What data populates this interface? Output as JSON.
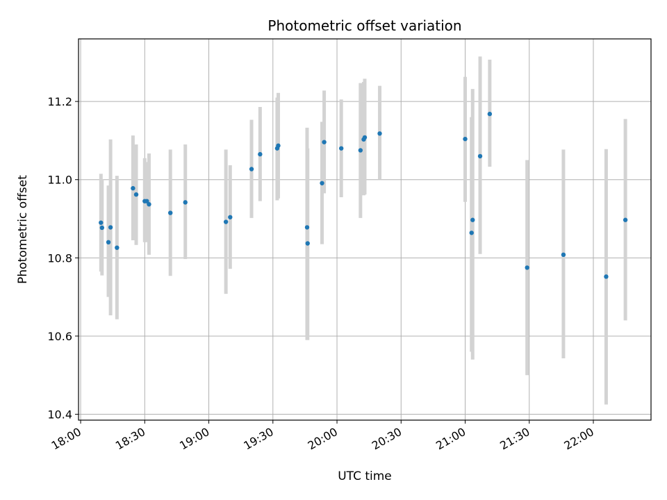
{
  "chart_data": {
    "type": "scatter",
    "title": "Photometric offset variation",
    "xlabel": "UTC time",
    "ylabel": "Photometric offset",
    "x_tick_labels": [
      "18:00",
      "18:30",
      "19:00",
      "19:30",
      "20:00",
      "20:30",
      "21:00",
      "21:30",
      "22:00"
    ],
    "y_tick_labels": [
      "10.4",
      "10.6",
      "10.8",
      "11.0",
      "11.2"
    ],
    "y_ticks": [
      10.4,
      10.6,
      10.8,
      11.0,
      11.2
    ],
    "xlim": [
      "17:59:00",
      "22:27:00"
    ],
    "ylim": [
      10.385,
      11.36
    ],
    "grid": true,
    "colors": {
      "points": "#1f77b4",
      "errorbars": "#d3d3d3",
      "grid": "#b0b0b0"
    },
    "points": [
      {
        "x": "18:09:30",
        "y": 10.89,
        "err_low": 10.765,
        "err_high": 11.015
      },
      {
        "x": "18:10:00",
        "y": 10.877,
        "err_low": 10.755,
        "err_high": 11.0
      },
      {
        "x": "18:13:00",
        "y": 10.84,
        "err_low": 10.7,
        "err_high": 10.985
      },
      {
        "x": "18:14:00",
        "y": 10.878,
        "err_low": 10.653,
        "err_high": 11.103
      },
      {
        "x": "18:17:00",
        "y": 10.826,
        "err_low": 10.643,
        "err_high": 11.01
      },
      {
        "x": "18:24:30",
        "y": 10.978,
        "err_low": 10.845,
        "err_high": 11.113
      },
      {
        "x": "18:26:00",
        "y": 10.962,
        "err_low": 10.833,
        "err_high": 11.09
      },
      {
        "x": "18:30:00",
        "y": 10.945,
        "err_low": 10.84,
        "err_high": 11.055
      },
      {
        "x": "18:31:00",
        "y": 10.945,
        "err_low": 10.84,
        "err_high": 11.045
      },
      {
        "x": "18:32:00",
        "y": 10.937,
        "err_low": 10.808,
        "err_high": 11.067
      },
      {
        "x": "18:42:00",
        "y": 10.915,
        "err_low": 10.754,
        "err_high": 11.077
      },
      {
        "x": "18:49:00",
        "y": 10.942,
        "err_low": 10.797,
        "err_high": 11.09
      },
      {
        "x": "19:08:00",
        "y": 10.892,
        "err_low": 10.708,
        "err_high": 11.077
      },
      {
        "x": "19:10:00",
        "y": 10.904,
        "err_low": 10.772,
        "err_high": 11.037
      },
      {
        "x": "19:20:00",
        "y": 11.027,
        "err_low": 10.902,
        "err_high": 11.153
      },
      {
        "x": "19:24:00",
        "y": 11.065,
        "err_low": 10.945,
        "err_high": 11.186
      },
      {
        "x": "19:32:00",
        "y": 11.08,
        "err_low": 10.947,
        "err_high": 11.21
      },
      {
        "x": "19:32:30",
        "y": 11.087,
        "err_low": 10.952,
        "err_high": 11.222
      },
      {
        "x": "19:46:00",
        "y": 10.878,
        "err_low": 10.59,
        "err_high": 11.133
      },
      {
        "x": "19:46:15",
        "y": 10.837,
        "err_low": 10.59,
        "err_high": 11.08
      },
      {
        "x": "19:53:00",
        "y": 10.991,
        "err_low": 10.835,
        "err_high": 11.148
      },
      {
        "x": "19:54:00",
        "y": 11.096,
        "err_low": 10.965,
        "err_high": 11.228
      },
      {
        "x": "20:02:00",
        "y": 11.08,
        "err_low": 10.955,
        "err_high": 11.205
      },
      {
        "x": "20:11:00",
        "y": 11.075,
        "err_low": 10.902,
        "err_high": 11.247
      },
      {
        "x": "20:12:30",
        "y": 11.103,
        "err_low": 10.96,
        "err_high": 11.25
      },
      {
        "x": "20:13:00",
        "y": 11.108,
        "err_low": 10.962,
        "err_high": 11.258
      },
      {
        "x": "20:20:00",
        "y": 11.118,
        "err_low": 11.0,
        "err_high": 11.24
      },
      {
        "x": "21:00:00",
        "y": 11.104,
        "err_low": 10.943,
        "err_high": 11.263
      },
      {
        "x": "21:03:00",
        "y": 10.864,
        "err_low": 10.56,
        "err_high": 11.16
      },
      {
        "x": "21:03:30",
        "y": 10.897,
        "err_low": 10.54,
        "err_high": 11.232
      },
      {
        "x": "21:07:00",
        "y": 11.06,
        "err_low": 10.81,
        "err_high": 11.315
      },
      {
        "x": "21:11:30",
        "y": 11.168,
        "err_low": 11.033,
        "err_high": 11.307
      },
      {
        "x": "21:29:00",
        "y": 10.775,
        "err_low": 10.5,
        "err_high": 11.05
      },
      {
        "x": "21:46:00",
        "y": 10.808,
        "err_low": 10.543,
        "err_high": 11.077
      },
      {
        "x": "22:06:00",
        "y": 10.752,
        "err_low": 10.425,
        "err_high": 11.078
      },
      {
        "x": "22:15:00",
        "y": 10.897,
        "err_low": 10.64,
        "err_high": 11.155
      }
    ]
  }
}
